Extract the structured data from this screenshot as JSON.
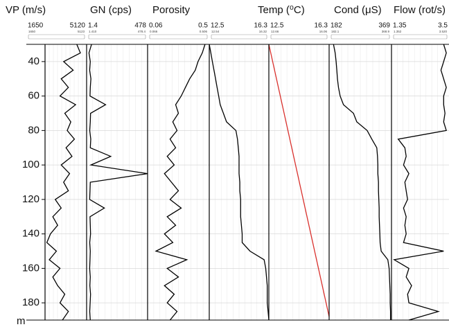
{
  "depth_axis": {
    "label": "m",
    "ylim": [
      30,
      190
    ],
    "yticks": [
      40,
      60,
      80,
      100,
      120,
      140,
      160,
      180
    ]
  },
  "chart_data": [
    {
      "type": "line",
      "title": "VP (m/s)",
      "xlim": [
        1650,
        5120
      ],
      "color": "#000000",
      "scale": [
        {
          "value": 1650,
          "label": "1650"
        },
        {
          "value": 5123,
          "label": "5123"
        }
      ],
      "y": [
        30,
        35,
        40,
        45,
        50,
        55,
        60,
        65,
        70,
        75,
        80,
        85,
        90,
        95,
        100,
        105,
        110,
        115,
        120,
        125,
        130,
        135,
        140,
        145,
        150,
        155,
        160,
        165,
        170,
        175,
        180,
        185,
        190
      ],
      "values": [
        4300,
        4600,
        3200,
        4000,
        3000,
        3600,
        2900,
        4200,
        3300,
        3800,
        3500,
        4100,
        3400,
        3900,
        3000,
        3700,
        3200,
        3600,
        2500,
        3000,
        2300,
        2700,
        2100,
        1800,
        2600,
        2000,
        2900,
        2300,
        2700,
        3300,
        2900,
        3600,
        3100
      ]
    },
    {
      "type": "line",
      "title": "GN (cps)",
      "xlim": [
        1.4,
        478
      ],
      "color": "#000000",
      "scale": [
        {
          "value": 1.41,
          "label": "1.410"
        },
        {
          "value": 478.4,
          "label": "478.4"
        }
      ],
      "y": [
        30,
        35,
        40,
        45,
        50,
        55,
        60,
        65,
        70,
        75,
        80,
        85,
        90,
        95,
        100,
        105,
        110,
        115,
        120,
        125,
        130,
        135,
        140,
        145,
        150,
        155,
        160,
        165,
        170,
        175,
        180,
        185,
        190
      ],
      "values": [
        40,
        20,
        30,
        25,
        35,
        30,
        28,
        150,
        32,
        30,
        26,
        34,
        30,
        190,
        35,
        478,
        30,
        28,
        25,
        140,
        28,
        30,
        32,
        26,
        30,
        28,
        25,
        30,
        27,
        32,
        29,
        26,
        30
      ]
    },
    {
      "type": "line",
      "title": "Porosity",
      "xlim": [
        0.06,
        0.5
      ],
      "color": "#000000",
      "scale": [
        {
          "value": 0.066,
          "label": "0.066"
        },
        {
          "value": 0.506,
          "label": "0.506"
        }
      ],
      "y": [
        30,
        35,
        40,
        45,
        50,
        55,
        60,
        65,
        70,
        75,
        80,
        85,
        90,
        95,
        100,
        105,
        110,
        115,
        120,
        125,
        130,
        135,
        140,
        145,
        150,
        155,
        160,
        165,
        170,
        175,
        180,
        185,
        190
      ],
      "values": [
        0.47,
        0.45,
        0.42,
        0.4,
        0.36,
        0.33,
        0.3,
        0.26,
        0.28,
        0.24,
        0.27,
        0.22,
        0.26,
        0.2,
        0.25,
        0.18,
        0.23,
        0.28,
        0.22,
        0.3,
        0.2,
        0.26,
        0.18,
        0.24,
        0.12,
        0.34,
        0.2,
        0.28,
        0.18,
        0.25,
        0.2,
        0.27,
        0.22
      ]
    },
    {
      "type": "line",
      "title": "Temp (⁰C)",
      "xlim": [
        12.5,
        16.3
      ],
      "color": "#000000",
      "scale": [
        {
          "value": 12.54,
          "label": "12.54"
        },
        {
          "value": 16.32,
          "label": "16.32"
        }
      ],
      "y": [
        30,
        35,
        40,
        45,
        50,
        55,
        60,
        65,
        70,
        75,
        80,
        85,
        90,
        95,
        100,
        105,
        110,
        115,
        120,
        125,
        130,
        135,
        140,
        145,
        150,
        155,
        160,
        165,
        170,
        175,
        180,
        185,
        190
      ],
      "values": [
        12.5,
        12.6,
        12.7,
        12.8,
        12.9,
        13.0,
        13.1,
        13.2,
        13.4,
        13.6,
        14.2,
        14.3,
        14.35,
        14.4,
        14.4,
        14.4,
        14.45,
        14.45,
        14.5,
        14.5,
        14.5,
        14.55,
        14.6,
        14.6,
        15.1,
        16.0,
        16.1,
        16.15,
        16.2,
        16.2,
        16.2,
        16.25,
        16.3
      ]
    },
    {
      "type": "line",
      "xlim": [
        12.5,
        16.3
      ],
      "color": "#d9302c",
      "scale": [
        {
          "value": 12.66,
          "label": "12.66"
        },
        {
          "value": 16.06,
          "label": "16.06"
        }
      ],
      "y": [
        30,
        188
      ],
      "values": [
        12.5,
        16.3
      ]
    },
    {
      "type": "line",
      "title": "Cond (μS)",
      "xlim": [
        182,
        369
      ],
      "color": "#000000",
      "scale": [
        {
          "value": 182.1,
          "label": "182.1"
        },
        {
          "value": 368.9,
          "label": "368.9"
        }
      ],
      "y": [
        30,
        35,
        40,
        45,
        50,
        55,
        60,
        65,
        70,
        75,
        80,
        85,
        90,
        95,
        100,
        105,
        110,
        115,
        120,
        125,
        130,
        135,
        140,
        145,
        150,
        155,
        160,
        165,
        170,
        175,
        180,
        185,
        190
      ],
      "values": [
        195,
        200,
        203,
        205,
        207,
        210,
        215,
        225,
        255,
        265,
        296,
        310,
        325,
        327,
        328,
        328,
        330,
        330,
        331,
        332,
        332,
        333,
        334,
        335,
        338,
        358,
        362,
        363,
        364,
        365,
        365,
        366,
        366
      ]
    },
    {
      "type": "line",
      "title": "Flow (rot/s)",
      "xlim": [
        1.35,
        3.5
      ],
      "color": "#000000",
      "scale": [
        {
          "value": 1.352,
          "label": "1.352"
        },
        {
          "value": 3.52,
          "label": "3.520"
        }
      ],
      "y": [
        30,
        35,
        40,
        45,
        50,
        55,
        60,
        65,
        70,
        75,
        80,
        85,
        90,
        95,
        100,
        105,
        110,
        115,
        120,
        125,
        130,
        135,
        140,
        145,
        150,
        155,
        160,
        165,
        170,
        175,
        180,
        185,
        190
      ],
      "values": [
        3.3,
        3.4,
        3.3,
        3.2,
        3.3,
        3.4,
        3.3,
        3.3,
        3.35,
        3.3,
        3.4,
        1.6,
        1.85,
        1.9,
        1.8,
        2.0,
        1.85,
        1.9,
        1.95,
        1.8,
        1.9,
        1.85,
        1.9,
        1.8,
        3.3,
        1.45,
        2.0,
        1.9,
        2.1,
        1.95,
        2.0,
        3.1,
        2.0
      ]
    }
  ]
}
